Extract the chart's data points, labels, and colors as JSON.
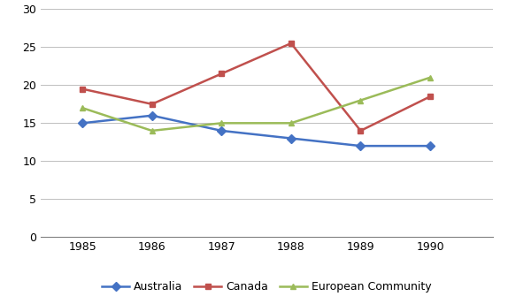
{
  "years": [
    1985,
    1986,
    1987,
    1988,
    1989,
    1990
  ],
  "australia": [
    15,
    16,
    14,
    13,
    12,
    12
  ],
  "canada": [
    19.5,
    17.5,
    21.5,
    25.5,
    14,
    18.5
  ],
  "european_community": [
    17,
    14,
    15,
    15,
    18,
    21
  ],
  "australia_color": "#4472C4",
  "canada_color": "#C0504D",
  "ec_color": "#9BBB59",
  "australia_label": "Australia",
  "canada_label": "Canada",
  "ec_label": "European Community",
  "ylim": [
    0,
    30
  ],
  "yticks": [
    0,
    5,
    10,
    15,
    20,
    25,
    30
  ],
  "background_color": "#FFFFFF",
  "grid_color": "#BFBFBF",
  "linewidth": 1.8,
  "markersize": 5,
  "tick_fontsize": 9,
  "legend_fontsize": 9
}
